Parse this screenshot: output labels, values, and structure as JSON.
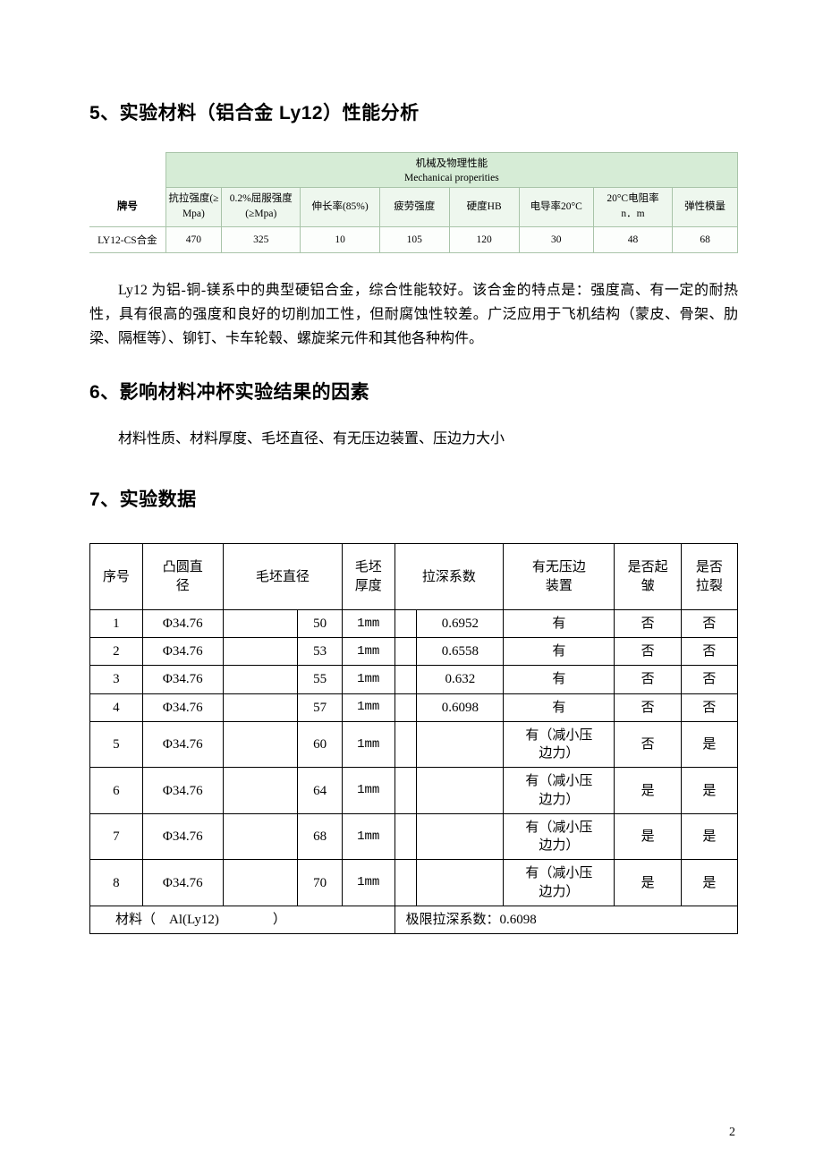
{
  "headings": {
    "h5": "5、实验材料（铝合金 Ly12）性能分析",
    "h6": "6、影响材料冲杯实验结果的因素",
    "h7": "7、实验数据"
  },
  "table1": {
    "super_header_line1": "机械及物理性能",
    "super_header_line2": "Mechanicai properities",
    "row_header": "牌号",
    "cols": {
      "c1a": "抗拉强度(≥",
      "c1b": "Mpa)",
      "c2a": "0.2%屈服强度",
      "c2b": "(≥Mpa)",
      "c3": "伸长率(85%)",
      "c4": "疲劳强度",
      "c5": "硬度HB",
      "c6": "电导率20°C",
      "c7a": "20°C电阻率",
      "c7b": "n．m",
      "c8": "弹性模量"
    },
    "data": {
      "name": "LY12-CS合金",
      "v1": "470",
      "v2": "325",
      "v3": "10",
      "v4": "105",
      "v5": "120",
      "v6": "30",
      "v7": "48",
      "v8": "68"
    }
  },
  "paragraph1": "Ly12 为铝-铜-镁系中的典型硬铝合金，综合性能较好。该合金的特点是：强度高、有一定的耐热性，具有很高的强度和良好的切削加工性，但耐腐蚀性较差。广泛应用于飞机结构（蒙皮、骨架、肋梁、隔框等）、铆钉、卡车轮毂、螺旋桨元件和其他各种构件。",
  "paragraph2": "材料性质、材料厚度、毛坯直径、有无压边装置、压边力大小",
  "table2": {
    "headers": {
      "seq": "序号",
      "punch": "凸圆直\n径",
      "blank": "毛坯直径",
      "thick": "毛坯\n厚度",
      "ratio": "拉深系数",
      "hold": "有无压边\n装置",
      "wrinkle": "是否起\n皱",
      "crack": "是否\n拉裂"
    },
    "rows": [
      {
        "n": "1",
        "punch": "Φ34.76",
        "blank": "50",
        "thick": "1mm",
        "ratio": "0.6952",
        "hold": "有",
        "wrinkle": "否",
        "crack": "否"
      },
      {
        "n": "2",
        "punch": "Φ34.76",
        "blank": "53",
        "thick": "1mm",
        "ratio": "0.6558",
        "hold": "有",
        "wrinkle": "否",
        "crack": "否"
      },
      {
        "n": "3",
        "punch": "Φ34.76",
        "blank": "55",
        "thick": "1mm",
        "ratio": "0.632",
        "hold": "有",
        "wrinkle": "否",
        "crack": "否"
      },
      {
        "n": "4",
        "punch": "Φ34.76",
        "blank": "57",
        "thick": "1mm",
        "ratio": "0.6098",
        "hold": "有",
        "wrinkle": "否",
        "crack": "否"
      },
      {
        "n": "5",
        "punch": "Φ34.76",
        "blank": "60",
        "thick": "1mm",
        "ratio": "",
        "hold": "有（减小压\n边力）",
        "wrinkle": "否",
        "crack": "是"
      },
      {
        "n": "6",
        "punch": "Φ34.76",
        "blank": "64",
        "thick": "1mm",
        "ratio": "",
        "hold": "有（减小压\n边力）",
        "wrinkle": "是",
        "crack": "是"
      },
      {
        "n": "7",
        "punch": "Φ34.76",
        "blank": "68",
        "thick": "1mm",
        "ratio": "",
        "hold": "有（减小压\n边力）",
        "wrinkle": "是",
        "crack": "是"
      },
      {
        "n": "8",
        "punch": "Φ34.76",
        "blank": "70",
        "thick": "1mm",
        "ratio": "",
        "hold": "有（减小压\n边力）",
        "wrinkle": "是",
        "crack": "是"
      }
    ],
    "footer_left": "材料（　Al(Ly12)　　　　）",
    "footer_right": "极限拉深系数：0.6098"
  },
  "page_number": "2",
  "colors": {
    "t1_header_bg": "#d6ecd6",
    "t1_sub_bg": "#eef7ee",
    "t1_border": "#a9c4a9",
    "t2_border": "#000000",
    "text": "#000000",
    "page_bg": "#ffffff"
  }
}
